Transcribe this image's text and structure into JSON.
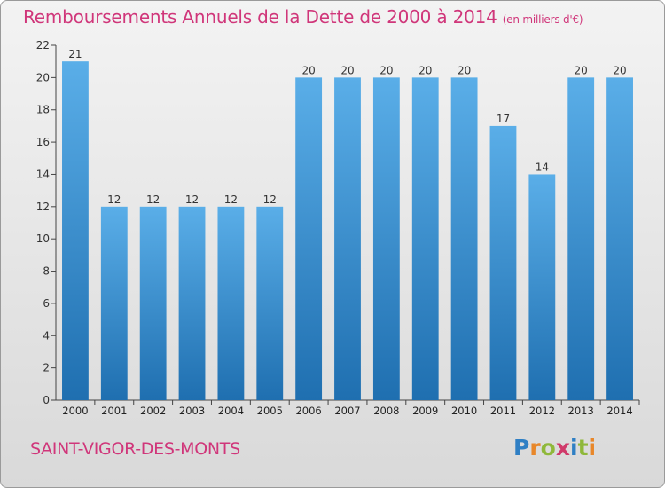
{
  "title": "Remboursements Annuels de la Dette de 2000 à 2014",
  "subtitle": "(en milliers d'€)",
  "commune": "SAINT-VIGOR-DES-MONTS",
  "brand": {
    "letters": [
      "P",
      "r",
      "o",
      "x",
      "i",
      "t",
      "i"
    ],
    "colors": [
      "#2f7fc4",
      "#e8872a",
      "#8fb83a",
      "#d03a6a",
      "#2f7fc4",
      "#8fb83a",
      "#e8872a"
    ]
  },
  "colors": {
    "accent": "#d0367a",
    "bar_light": "#5aaee8",
    "bar_dark": "#1f6fb0"
  },
  "chart_data": {
    "type": "bar",
    "categories": [
      "2000",
      "2001",
      "2002",
      "2003",
      "2004",
      "2005",
      "2006",
      "2007",
      "2008",
      "2009",
      "2010",
      "2011",
      "2012",
      "2013",
      "2014"
    ],
    "values": [
      21,
      12,
      12,
      12,
      12,
      12,
      20,
      20,
      20,
      20,
      20,
      17,
      14,
      20,
      20
    ],
    "ylim": [
      0,
      22
    ],
    "yticks": [
      0,
      2,
      4,
      6,
      8,
      10,
      12,
      14,
      16,
      18,
      20,
      22
    ],
    "grid": false
  }
}
